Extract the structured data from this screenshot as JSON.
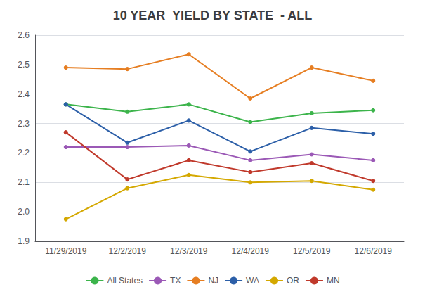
{
  "chart_data": {
    "type": "line",
    "title": "10 YEAR  YIELD BY STATE  - ALL",
    "categories": [
      "11/29/2019",
      "12/2/2019",
      "12/3/2019",
      "12/4/2019",
      "12/5/2019",
      "12/6/2019"
    ],
    "series": [
      {
        "name": "All States",
        "color": "#3cb44b",
        "values": [
          2.365,
          2.34,
          2.365,
          2.305,
          2.335,
          2.345
        ]
      },
      {
        "name": "TX",
        "color": "#9b59b6",
        "values": [
          2.22,
          2.22,
          2.225,
          2.175,
          2.195,
          2.175
        ]
      },
      {
        "name": "NJ",
        "color": "#e67e22",
        "values": [
          2.49,
          2.485,
          2.535,
          2.385,
          2.49,
          2.445
        ]
      },
      {
        "name": "WA",
        "color": "#2c5fa8",
        "values": [
          2.365,
          2.235,
          2.31,
          2.205,
          2.285,
          2.265
        ]
      },
      {
        "name": "OR",
        "color": "#d4a800",
        "values": [
          1.975,
          2.08,
          2.125,
          2.1,
          2.105,
          2.075
        ]
      },
      {
        "name": "MN",
        "color": "#c0392b",
        "values": [
          2.27,
          2.11,
          2.175,
          2.135,
          2.165,
          2.105
        ]
      }
    ],
    "ylim": [
      1.9,
      2.6
    ],
    "yticks": [
      1.9,
      {
        "value": 2,
        "label": "2.0"
      },
      2.1,
      2.2,
      2.3,
      2.4,
      2.5,
      2.6
    ],
    "grid": true,
    "legend": "bottom",
    "marker": "circle"
  }
}
